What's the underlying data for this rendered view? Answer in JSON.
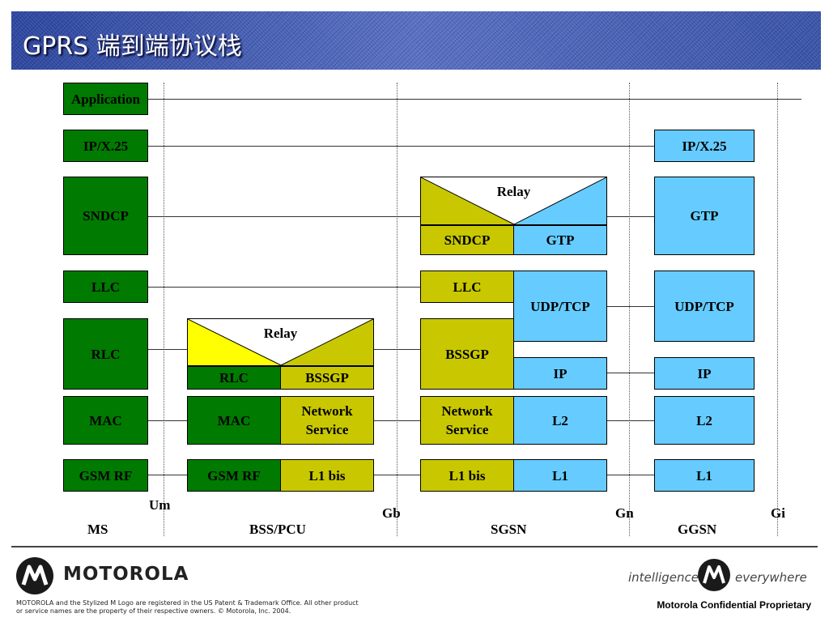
{
  "title": "GPRS 端到端协议栈",
  "colors": {
    "green": "#007a00",
    "olive": "#c9c800",
    "blue": "#66ccff",
    "yellow": "#ffff00",
    "title_bg": "#3a52a8"
  },
  "ms": {
    "application": "Application",
    "ip_x25": "IP/X.25",
    "sndcp": "SNDCP",
    "llc": "LLC",
    "rlc": "RLC",
    "mac": "MAC",
    "gsm_rf": "GSM RF"
  },
  "bss": {
    "relay": "Relay",
    "rlc": "RLC",
    "bssgp": "BSSGP",
    "mac": "MAC",
    "network_service": "Network Service",
    "gsm_rf": "GSM RF",
    "l1bis": "L1 bis"
  },
  "sgsn": {
    "relay": "Relay",
    "sndcp": "SNDCP",
    "gtp": "GTP",
    "llc": "LLC",
    "udp_tcp": "UDP/TCP",
    "bssgp": "BSSGP",
    "ip": "IP",
    "network_service": "Network Service",
    "l2": "L2",
    "l1bis": "L1 bis",
    "l1": "L1"
  },
  "ggsn": {
    "ip_x25": "IP/X.25",
    "gtp": "GTP",
    "udp_tcp": "UDP/TCP",
    "ip": "IP",
    "l2": "L2",
    "l1": "L1"
  },
  "interfaces": {
    "um": "Um",
    "gb": "Gb",
    "gn": "Gn",
    "gi": "Gi"
  },
  "nodes": {
    "ms": "MS",
    "bss": "BSS/PCU",
    "sgsn": "SGSN",
    "ggsn": "GGSN"
  },
  "footer": {
    "brand": "MOTOROLA",
    "tag_left": "intelligence",
    "tag_right": "everywhere",
    "legal": "MOTOROLA and the Stylized M Logo are registered in the US Patent & Trademark Office. All other product or service names are the property of their respective owners. © Motorola, Inc. 2004.",
    "confidential": "Motorola Confidential Proprietary"
  }
}
